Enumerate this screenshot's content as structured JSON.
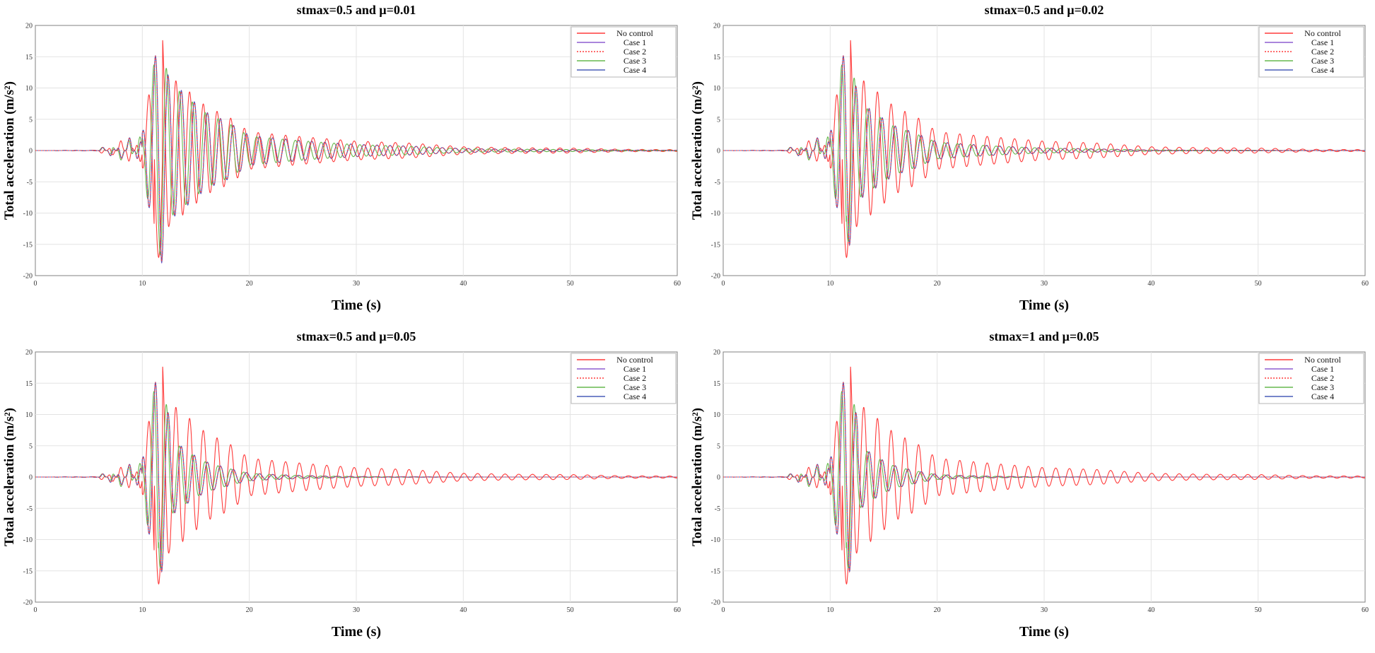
{
  "chart_data": [
    {
      "type": "line",
      "title": "stmax=0.5 and μ=0.01",
      "xlabel": "Time (s)",
      "ylabel": "Total acceleration (m/s²)",
      "xlim": [
        0,
        60
      ],
      "ylim": [
        -20,
        20
      ],
      "xticks": [
        "0",
        "10",
        "20",
        "30",
        "40",
        "50",
        "60"
      ],
      "yticks": [
        "-20",
        "-15",
        "-10",
        "-5",
        "0",
        "5",
        "10",
        "15",
        "20"
      ],
      "grid": true,
      "legend_position": "top-right",
      "legend": [
        "No control",
        "Case 1",
        "Case 2",
        "Case 3",
        "Case 4"
      ],
      "reduction_factor": 0.96,
      "damping_factor": 0.98,
      "series": [
        {
          "name": "No control",
          "color": "#ff3b3b",
          "style": "solid",
          "envelope_t": [
            0,
            5.5,
            10,
            11.2,
            11.8,
            12.5,
            14,
            16,
            18,
            20,
            25,
            30,
            35,
            40,
            45,
            50,
            55,
            60
          ],
          "envelope_a": [
            0,
            0.05,
            2.8,
            15.0,
            19.0,
            12.0,
            10.0,
            7.0,
            5.5,
            3.0,
            2.2,
            1.5,
            1.2,
            0.6,
            0.45,
            0.4,
            0.2,
            0.15
          ]
        },
        {
          "name": "Case 1",
          "color": "#8e5fd0",
          "style": "solid"
        },
        {
          "name": "Case 2",
          "color": "#ff3b3b",
          "style": "dotted"
        },
        {
          "name": "Case 3",
          "color": "#67b84e",
          "style": "solid"
        },
        {
          "name": "Case 4",
          "color": "#4a5fb8",
          "style": "solid"
        }
      ]
    },
    {
      "type": "line",
      "title": "stmax=0.5 and μ=0.02",
      "xlabel": "Time (s)",
      "ylabel": "Total acceleration (m/s²)",
      "xlim": [
        0,
        60
      ],
      "ylim": [
        -20,
        20
      ],
      "xticks": [
        "0",
        "10",
        "20",
        "30",
        "40",
        "50",
        "60"
      ],
      "yticks": [
        "-20",
        "-15",
        "-10",
        "-5",
        "0",
        "5",
        "10",
        "15",
        "20"
      ],
      "grid": true,
      "legend_position": "top-right",
      "legend": [
        "No control",
        "Case 1",
        "Case 2",
        "Case 3",
        "Case 4"
      ],
      "reduction_factor": 0.72,
      "damping_factor": 0.95,
      "series": [
        {
          "name": "No control",
          "color": "#ff3b3b",
          "style": "solid",
          "envelope_t": [
            0,
            5.5,
            10,
            11.2,
            11.8,
            12.5,
            14,
            16,
            18,
            20,
            25,
            30,
            35,
            40,
            45,
            50,
            55,
            60
          ],
          "envelope_a": [
            0,
            0.05,
            2.8,
            15.0,
            19.0,
            12.0,
            10.0,
            7.0,
            5.5,
            3.0,
            2.2,
            1.5,
            1.2,
            0.6,
            0.45,
            0.4,
            0.2,
            0.15
          ]
        },
        {
          "name": "Case 1",
          "color": "#8e5fd0",
          "style": "solid"
        },
        {
          "name": "Case 2",
          "color": "#ff3b3b",
          "style": "dotted"
        },
        {
          "name": "Case 3",
          "color": "#67b84e",
          "style": "solid"
        },
        {
          "name": "Case 4",
          "color": "#4a5fb8",
          "style": "solid"
        }
      ]
    },
    {
      "type": "line",
      "title": "stmax=0.5 and μ=0.05",
      "xlabel": "Time (s)",
      "ylabel": "Total acceleration (m/s²)",
      "xlim": [
        0,
        60
      ],
      "ylim": [
        -20,
        20
      ],
      "xticks": [
        "0",
        "10",
        "20",
        "30",
        "40",
        "50",
        "60"
      ],
      "yticks": [
        "-20",
        "-15",
        "-10",
        "-5",
        "0",
        "5",
        "10",
        "15",
        "20"
      ],
      "grid": true,
      "legend_position": "top-right",
      "legend": [
        "No control",
        "Case 1",
        "Case 2",
        "Case 3",
        "Case 4"
      ],
      "reduction_factor": 0.62,
      "damping_factor": 0.88,
      "series": [
        {
          "name": "No control",
          "color": "#ff3b3b",
          "style": "solid",
          "envelope_t": [
            0,
            5.5,
            10,
            11.2,
            11.8,
            12.5,
            14,
            16,
            18,
            20,
            25,
            30,
            35,
            40,
            45,
            50,
            55,
            60
          ],
          "envelope_a": [
            0,
            0.05,
            2.8,
            15.0,
            19.0,
            12.0,
            10.0,
            7.0,
            5.5,
            3.0,
            2.2,
            1.5,
            1.2,
            0.6,
            0.45,
            0.4,
            0.2,
            0.15
          ]
        },
        {
          "name": "Case 1",
          "color": "#8e5fd0",
          "style": "solid"
        },
        {
          "name": "Case 2",
          "color": "#ff3b3b",
          "style": "dotted"
        },
        {
          "name": "Case 3",
          "color": "#67b84e",
          "style": "solid"
        },
        {
          "name": "Case 4",
          "color": "#4a5fb8",
          "style": "solid"
        }
      ]
    },
    {
      "type": "line",
      "title": "stmax=1 and μ=0.05",
      "xlabel": "Time (s)",
      "ylabel": "Total acceleration (m/s²)",
      "xlim": [
        0,
        60
      ],
      "ylim": [
        -20,
        20
      ],
      "xticks": [
        "0",
        "10",
        "20",
        "30",
        "40",
        "50",
        "60"
      ],
      "yticks": [
        "-20",
        "-15",
        "-10",
        "-5",
        "0",
        "5",
        "10",
        "15",
        "20"
      ],
      "grid": true,
      "legend_position": "top-right",
      "legend": [
        "No control",
        "Case 1",
        "Case 2",
        "Case 3",
        "Case 4"
      ],
      "reduction_factor": 0.55,
      "damping_factor": 0.85,
      "series": [
        {
          "name": "No control",
          "color": "#ff3b3b",
          "style": "solid",
          "envelope_t": [
            0,
            5.5,
            10,
            11.2,
            11.8,
            12.5,
            14,
            16,
            18,
            20,
            25,
            30,
            35,
            40,
            45,
            50,
            55,
            60
          ],
          "envelope_a": [
            0,
            0.05,
            2.8,
            15.0,
            19.0,
            12.0,
            10.0,
            7.0,
            5.5,
            3.0,
            2.2,
            1.5,
            1.2,
            0.6,
            0.45,
            0.4,
            0.2,
            0.15
          ]
        },
        {
          "name": "Case 1",
          "color": "#8e5fd0",
          "style": "solid"
        },
        {
          "name": "Case 2",
          "color": "#ff3b3b",
          "style": "dotted"
        },
        {
          "name": "Case 3",
          "color": "#67b84e",
          "style": "solid"
        },
        {
          "name": "Case 4",
          "color": "#4a5fb8",
          "style": "solid"
        }
      ]
    }
  ]
}
